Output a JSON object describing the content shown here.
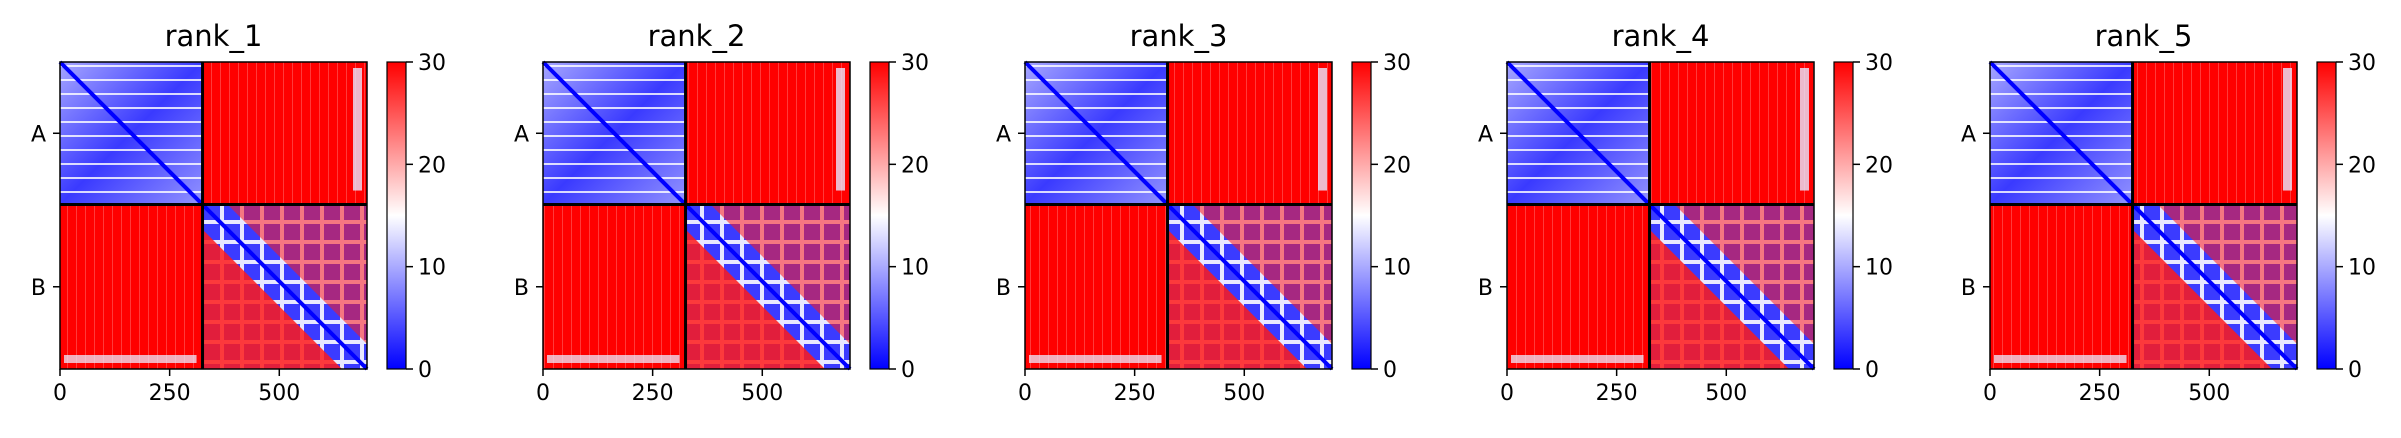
{
  "chart_data": [
    {
      "type": "heatmap",
      "title": "rank_1",
      "x_range": [
        0,
        700
      ],
      "x_ticks": [
        "0",
        "250",
        "500"
      ],
      "x_tick_values": [
        0,
        250,
        500
      ],
      "y_tick_labels": [
        "A",
        "B"
      ],
      "chain_boundary": 325,
      "colorbar": {
        "range": [
          0,
          30
        ],
        "ticks": [
          "0",
          "10",
          "20",
          "30"
        ],
        "tick_values": [
          0,
          10,
          20,
          30
        ]
      },
      "colormap": [
        "#0000ff",
        "#ffffff",
        "#ff0000"
      ]
    },
    {
      "type": "heatmap",
      "title": "rank_2",
      "x_range": [
        0,
        700
      ],
      "x_ticks": [
        "0",
        "250",
        "500"
      ],
      "x_tick_values": [
        0,
        250,
        500
      ],
      "y_tick_labels": [
        "A",
        "B"
      ],
      "chain_boundary": 325,
      "colorbar": {
        "range": [
          0,
          30
        ],
        "ticks": [
          "0",
          "10",
          "20",
          "30"
        ],
        "tick_values": [
          0,
          10,
          20,
          30
        ]
      },
      "colormap": [
        "#0000ff",
        "#ffffff",
        "#ff0000"
      ]
    },
    {
      "type": "heatmap",
      "title": "rank_3",
      "x_range": [
        0,
        700
      ],
      "x_ticks": [
        "0",
        "250",
        "500"
      ],
      "x_tick_values": [
        0,
        250,
        500
      ],
      "y_tick_labels": [
        "A",
        "B"
      ],
      "chain_boundary": 325,
      "colorbar": {
        "range": [
          0,
          30
        ],
        "ticks": [
          "0",
          "10",
          "20",
          "30"
        ],
        "tick_values": [
          0,
          10,
          20,
          30
        ]
      },
      "colormap": [
        "#0000ff",
        "#ffffff",
        "#ff0000"
      ]
    },
    {
      "type": "heatmap",
      "title": "rank_4",
      "x_range": [
        0,
        700
      ],
      "x_ticks": [
        "0",
        "250",
        "500"
      ],
      "x_tick_values": [
        0,
        250,
        500
      ],
      "y_tick_labels": [
        "A",
        "B"
      ],
      "chain_boundary": 325,
      "colorbar": {
        "range": [
          0,
          30
        ],
        "ticks": [
          "0",
          "10",
          "20",
          "30"
        ],
        "tick_values": [
          0,
          10,
          20,
          30
        ]
      },
      "colormap": [
        "#0000ff",
        "#ffffff",
        "#ff0000"
      ]
    },
    {
      "type": "heatmap",
      "title": "rank_5",
      "x_range": [
        0,
        700
      ],
      "x_ticks": [
        "0",
        "250",
        "500"
      ],
      "x_tick_values": [
        0,
        250,
        500
      ],
      "y_tick_labels": [
        "A",
        "B"
      ],
      "chain_boundary": 325,
      "colorbar": {
        "range": [
          0,
          30
        ],
        "ticks": [
          "0",
          "10",
          "20",
          "30"
        ],
        "tick_values": [
          0,
          10,
          20,
          30
        ]
      },
      "colormap": [
        "#0000ff",
        "#ffffff",
        "#ff0000"
      ]
    }
  ]
}
